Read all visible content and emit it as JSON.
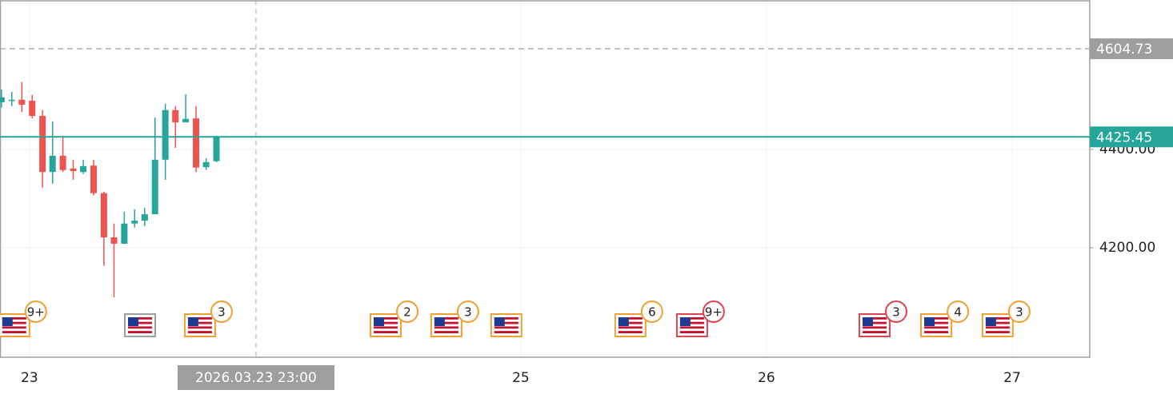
{
  "chart_data": {
    "type": "candlestick",
    "colors": {
      "up": "#26a69a",
      "down": "#ef5350"
    },
    "x": [
      22.886,
      22.928,
      22.969,
      23.011,
      23.053,
      23.094,
      23.136,
      23.178,
      23.219,
      23.261,
      23.303,
      23.344,
      23.386,
      23.428,
      23.469,
      23.511,
      23.553,
      23.594,
      23.636,
      23.678,
      23.719,
      23.761
    ],
    "open": [
      4496,
      4499,
      4501,
      4499,
      4468,
      4354,
      4387,
      4361,
      4354,
      4367,
      4311,
      4221,
      4208,
      4249,
      4255,
      4268,
      4379,
      4480,
      4455,
      4463,
      4364,
      4376
    ],
    "high": [
      4522,
      4517,
      4537,
      4511,
      4480,
      4457,
      4428,
      4379,
      4379,
      4379,
      4314,
      4249,
      4273,
      4278,
      4281,
      4465,
      4493,
      4488,
      4512,
      4488,
      4382,
      4428
    ],
    "low": [
      4485,
      4488,
      4476,
      4463,
      4322,
      4330,
      4354,
      4338,
      4350,
      4306,
      4163,
      4099,
      4207,
      4241,
      4244,
      4268,
      4338,
      4403,
      4455,
      4354,
      4358,
      4374
    ],
    "close": [
      4506,
      4501,
      4491,
      4468,
      4354,
      4387,
      4358,
      4356,
      4366,
      4311,
      4221,
      4208,
      4249,
      4255,
      4268,
      4379,
      4480,
      4455,
      4462,
      4363,
      4374,
      4425.45
    ],
    "xlim": [
      22.88,
      27.316
    ],
    "xticks": [
      23,
      25,
      26,
      27
    ],
    "ylim": [
      3977,
      4704
    ],
    "yticks": [
      {
        "value": 4200,
        "label": "4200.00"
      },
      {
        "value": 4400,
        "label": "4400.00"
      }
    ],
    "grid": true,
    "price_lines": [
      {
        "value": 4604.73,
        "color": "#9e9e9e",
        "dashed": true
      },
      {
        "value": 4425.45,
        "color": "#26a69a",
        "dashed": false
      }
    ],
    "crosshair": {
      "x": 23.922,
      "label": "2026.03.23 23:00"
    },
    "events": [
      {
        "x": 22.938,
        "count": "9+",
        "color": "#f0a030"
      },
      {
        "x": 23.45,
        "count": null,
        "color": "#9e9e9e"
      },
      {
        "x": 23.694,
        "count": 3,
        "color": "#f0a030"
      },
      {
        "x": 24.45,
        "count": 2,
        "color": "#f0a030"
      },
      {
        "x": 24.697,
        "count": 3,
        "color": "#f0a030"
      },
      {
        "x": 24.941,
        "count": null,
        "color": "#f0a030"
      },
      {
        "x": 25.446,
        "count": 6,
        "color": "#f0a030"
      },
      {
        "x": 25.697,
        "count": "9+",
        "color": "#e0434f"
      },
      {
        "x": 26.44,
        "count": 3,
        "color": "#e0434f"
      },
      {
        "x": 26.691,
        "count": 4,
        "color": "#f0a030"
      },
      {
        "x": 26.941,
        "count": 3,
        "color": "#f0a030"
      }
    ]
  }
}
